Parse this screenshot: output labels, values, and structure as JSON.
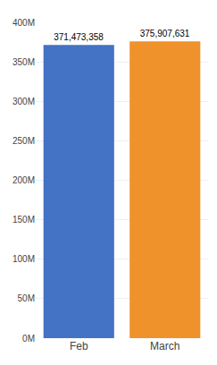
{
  "chart_data": {
    "type": "bar",
    "categories": [
      "Feb",
      "March"
    ],
    "values": [
      371473358,
      375907631
    ],
    "value_labels": [
      "371,473,358",
      "375,907,631"
    ],
    "colors": [
      "#4472c4",
      "#f0922b"
    ],
    "ylim": [
      0,
      400000000
    ],
    "yticks": [
      {
        "value": 0,
        "label": "0M"
      },
      {
        "value": 50000000,
        "label": "50M"
      },
      {
        "value": 100000000,
        "label": "100M"
      },
      {
        "value": 150000000,
        "label": "150M"
      },
      {
        "value": 200000000,
        "label": "200M"
      },
      {
        "value": 250000000,
        "label": "250M"
      },
      {
        "value": 300000000,
        "label": "300M"
      },
      {
        "value": 350000000,
        "label": "350M"
      },
      {
        "value": 400000000,
        "label": "400M"
      }
    ],
    "grid": true,
    "data_labels": true
  }
}
